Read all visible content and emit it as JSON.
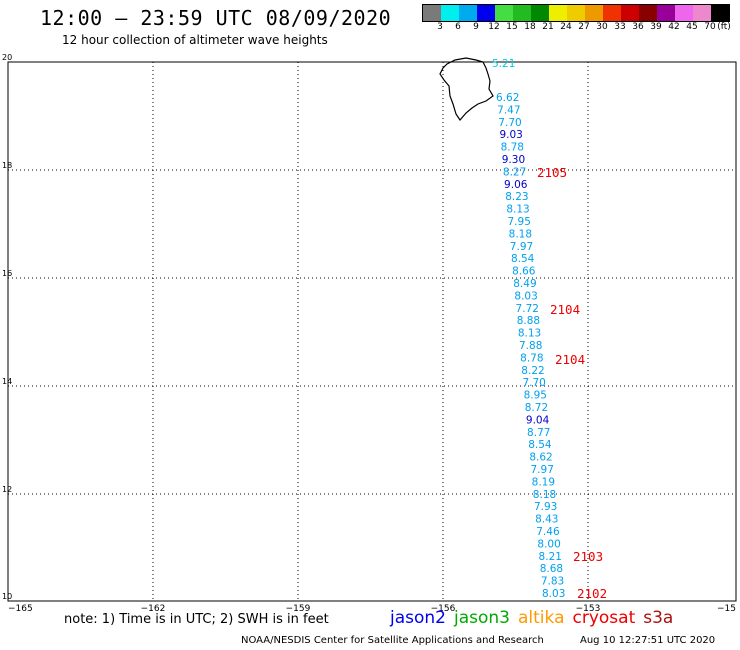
{
  "header": {
    "title": "12:00 – 23:59 UTC 08/09/2020",
    "subtitle": "12 hour collection of altimeter wave heights"
  },
  "colorbar": {
    "colors": [
      "#7a7a7a",
      "#00eeee",
      "#00aaee",
      "#0000ee",
      "#44dd44",
      "#22bb22",
      "#008800",
      "#eeee00",
      "#eecc00",
      "#ee9900",
      "#ee3300",
      "#cc0000",
      "#880000",
      "#990099",
      "#ee66ee",
      "#ee88cc",
      "#000000"
    ],
    "labels": [
      "3",
      "6",
      "9",
      "12",
      "15",
      "18",
      "21",
      "24",
      "27",
      "30",
      "33",
      "36",
      "39",
      "42",
      "45",
      "70",
      "(ft)"
    ]
  },
  "map": {
    "lat_labels": [
      "20",
      "18",
      "16",
      "14",
      "12",
      "10"
    ],
    "lon_labels": [
      "−165",
      "−162",
      "−159",
      "−156",
      "−153",
      "−15"
    ],
    "points": [
      {
        "v": "5.21",
        "c": "#00ccdd"
      },
      {
        "v": "6.62",
        "c": "#00a0ee"
      },
      {
        "v": "7.47",
        "c": "#00a0ee"
      },
      {
        "v": "7.70",
        "c": "#00a0ee"
      },
      {
        "v": "9.03",
        "c": "#0000cc"
      },
      {
        "v": "8.78",
        "c": "#00a0ee"
      },
      {
        "v": "9.30",
        "c": "#0000cc"
      },
      {
        "v": "8.27",
        "c": "#00a0ee"
      },
      {
        "v": "9.06",
        "c": "#0000cc"
      },
      {
        "v": "8.23",
        "c": "#00a0ee"
      },
      {
        "v": "8.13",
        "c": "#00a0ee"
      },
      {
        "v": "7.95",
        "c": "#00a0ee"
      },
      {
        "v": "8.18",
        "c": "#00a0ee"
      },
      {
        "v": "7.97",
        "c": "#00a0ee"
      },
      {
        "v": "8.54",
        "c": "#00a0ee"
      },
      {
        "v": "8.66",
        "c": "#00a0ee"
      },
      {
        "v": "8.49",
        "c": "#00a0ee"
      },
      {
        "v": "8.03",
        "c": "#00a0ee"
      },
      {
        "v": "7.72",
        "c": "#00a0ee"
      },
      {
        "v": "8.88",
        "c": "#00a0ee"
      },
      {
        "v": "8.13",
        "c": "#00a0ee"
      },
      {
        "v": "7.88",
        "c": "#00a0ee"
      },
      {
        "v": "8.78",
        "c": "#00a0ee"
      },
      {
        "v": "8.22",
        "c": "#00a0ee"
      },
      {
        "v": "7.70",
        "c": "#00a0ee"
      },
      {
        "v": "8.95",
        "c": "#00a0ee"
      },
      {
        "v": "8.72",
        "c": "#00a0ee"
      },
      {
        "v": "9.04",
        "c": "#0000cc"
      },
      {
        "v": "8.77",
        "c": "#00a0ee"
      },
      {
        "v": "8.54",
        "c": "#00a0ee"
      },
      {
        "v": "8.62",
        "c": "#00a0ee"
      },
      {
        "v": "7.97",
        "c": "#00a0ee"
      },
      {
        "v": "8.19",
        "c": "#00a0ee"
      },
      {
        "v": "8.18",
        "c": "#00a0ee"
      },
      {
        "v": "7.93",
        "c": "#00a0ee"
      },
      {
        "v": "8.43",
        "c": "#00a0ee"
      },
      {
        "v": "7.46",
        "c": "#00a0ee"
      },
      {
        "v": "8.00",
        "c": "#00a0ee"
      },
      {
        "v": "8.21",
        "c": "#00a0ee"
      },
      {
        "v": "8.68",
        "c": "#00a0ee"
      },
      {
        "v": "7.83",
        "c": "#00a0ee"
      },
      {
        "v": "8.03",
        "c": "#00a0ee"
      }
    ],
    "passes": [
      {
        "text": "2105",
        "color": "#ee0000"
      },
      {
        "text": "2104",
        "color": "#ee0000"
      },
      {
        "text": "2104",
        "color": "#ee0000"
      },
      {
        "text": "2103",
        "color": "#ee0000"
      },
      {
        "text": "2102",
        "color": "#ee0000"
      }
    ]
  },
  "footer": {
    "note": "note: 1) Time is in UTC; 2) SWH is in feet",
    "legend": [
      {
        "label": "jason2",
        "color": "#0000ee"
      },
      {
        "label": "jason3",
        "color": "#00aa00"
      },
      {
        "label": "altika",
        "color": "#ff9900"
      },
      {
        "label": "cryosat",
        "color": "#ee0000"
      },
      {
        "label": "s3a",
        "color": "#aa1111"
      }
    ],
    "credit": "NOAA/NESDIS Center for Satellite Applications and Research",
    "timestamp": "Aug 10 12:27:51 UTC 2020"
  }
}
